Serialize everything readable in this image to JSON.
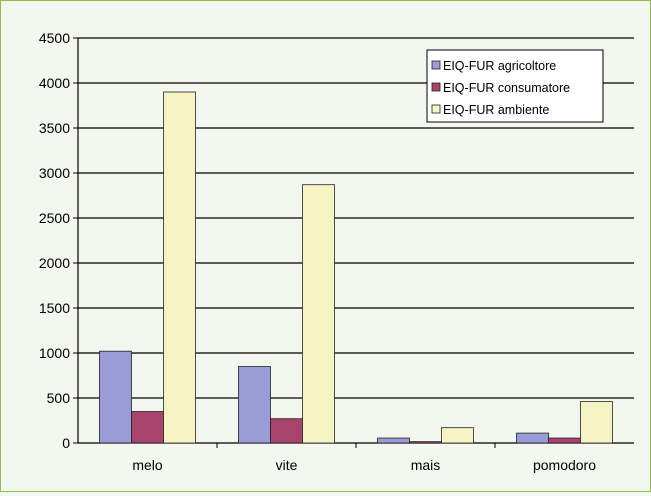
{
  "chart_data": {
    "type": "bar",
    "categories": [
      "melo",
      "vite",
      "mais",
      "pomodoro"
    ],
    "series": [
      {
        "name": "EIQ-FUR agricoltore",
        "values": [
          1020,
          850,
          55,
          110
        ],
        "color": "#9a9cd8"
      },
      {
        "name": "EIQ-FUR consumatore",
        "values": [
          350,
          270,
          15,
          55
        ],
        "color": "#a8436e"
      },
      {
        "name": "EIQ-FUR ambiente",
        "values": [
          3900,
          2870,
          170,
          460
        ],
        "color": "#f6f4c2"
      }
    ],
    "y_ticks": [
      "0",
      "500",
      "1000",
      "1500",
      "2000",
      "2500",
      "3000",
      "3500",
      "4000",
      "4500"
    ],
    "ylim": [
      0,
      4500
    ],
    "grid": true,
    "legend_position": "top-right",
    "colors": {
      "gridline": "#000000",
      "background": "#f4f6f0",
      "frame_border": "#8fbf4a"
    }
  }
}
